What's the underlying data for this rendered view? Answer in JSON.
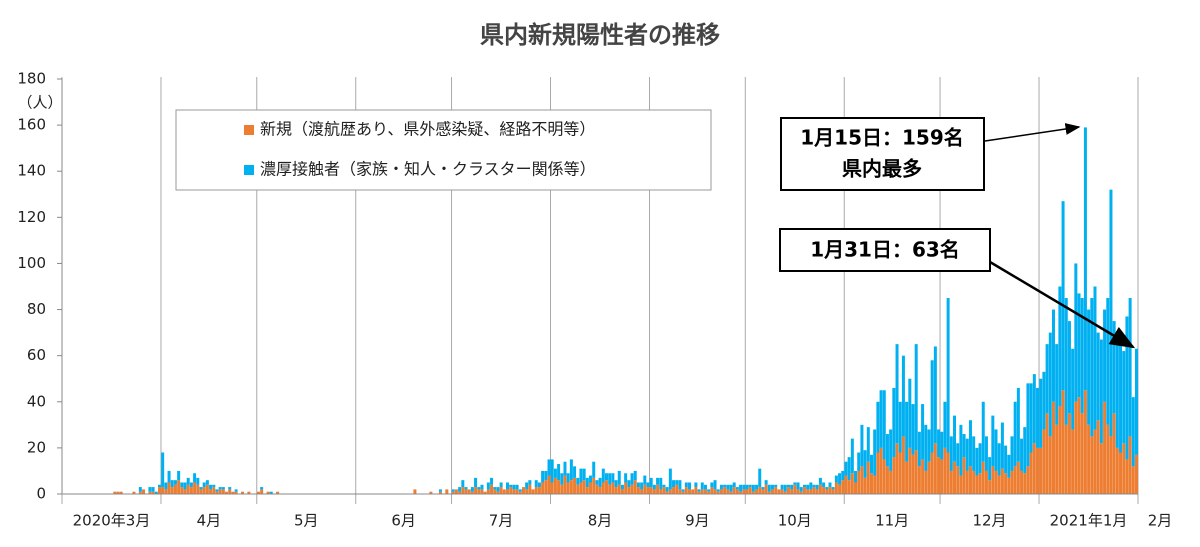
{
  "chart_data": {
    "type": "stacked_bar",
    "title": "県内新規陽性者の推移",
    "y_unit_label": "（人）",
    "categories": [
      "2020年3月",
      null,
      null,
      null,
      null,
      null,
      null,
      null,
      null,
      null,
      null,
      null,
      null,
      null,
      null,
      null,
      null,
      null,
      null,
      null,
      null,
      null,
      null,
      null,
      null,
      null,
      null,
      null,
      null,
      null,
      null,
      "4月",
      null,
      null,
      null,
      null,
      null,
      null,
      null,
      null,
      null,
      null,
      null,
      null,
      null,
      null,
      null,
      null,
      null,
      null,
      null,
      null,
      null,
      null,
      null,
      null,
      null,
      null,
      null,
      null,
      null,
      "5月",
      null,
      null,
      null,
      null,
      null,
      null,
      null,
      null,
      null,
      null,
      null,
      null,
      null,
      null,
      null,
      null,
      null,
      null,
      null,
      null,
      null,
      null,
      null,
      null,
      null,
      null,
      null,
      null,
      null,
      null,
      "6月",
      null,
      null,
      null,
      null,
      null,
      null,
      null,
      null,
      null,
      null,
      null,
      null,
      null,
      null,
      null,
      null,
      null,
      null,
      null,
      null,
      null,
      null,
      null,
      null,
      null,
      null,
      null,
      null,
      null,
      "7月",
      null,
      null,
      null,
      null,
      null,
      null,
      null,
      null,
      null,
      null,
      null,
      null,
      null,
      null,
      null,
      null,
      null,
      null,
      null,
      null,
      null,
      null,
      null,
      null,
      null,
      null,
      null,
      null,
      null,
      null,
      "8月",
      null,
      null,
      null,
      null,
      null,
      null,
      null,
      null,
      null,
      null,
      null,
      null,
      null,
      null,
      null,
      null,
      null,
      null,
      null,
      null,
      null,
      null,
      null,
      null,
      null,
      null,
      null,
      null,
      null,
      null,
      "9月",
      null,
      null,
      null,
      null,
      null,
      null,
      null,
      null,
      null,
      null,
      null,
      null,
      null,
      null,
      null,
      null,
      null,
      null,
      null,
      null,
      null,
      null,
      null,
      null,
      null,
      null,
      null,
      null,
      null,
      "10月",
      null,
      null,
      null,
      null,
      null,
      null,
      null,
      null,
      null,
      null,
      null,
      null,
      null,
      null,
      null,
      null,
      null,
      null,
      null,
      null,
      null,
      null,
      null,
      null,
      null,
      null,
      null,
      null,
      null,
      null,
      "11月",
      null,
      null,
      null,
      null,
      null,
      null,
      null,
      null,
      null,
      null,
      null,
      null,
      null,
      null,
      null,
      null,
      null,
      null,
      null,
      null,
      null,
      null,
      null,
      null,
      null,
      null,
      null,
      null,
      null,
      "12月",
      null,
      null,
      null,
      null,
      null,
      null,
      null,
      null,
      null,
      null,
      null,
      null,
      null,
      null,
      null,
      null,
      null,
      null,
      null,
      null,
      null,
      null,
      null,
      null,
      null,
      null,
      null,
      null,
      null,
      null,
      "2021年1月",
      null,
      null,
      null,
      null,
      null,
      null,
      null,
      null,
      null,
      null,
      null,
      null,
      null,
      null,
      null,
      null,
      null,
      null,
      null,
      null,
      null,
      null,
      null,
      null,
      null,
      null,
      null,
      null,
      null,
      null,
      "2月"
    ],
    "series": [
      {
        "name": "新規（渡航歴あり、県外感染疑、経路不明等）",
        "color": "#ED7D31",
        "values": [
          0,
          0,
          0,
          0,
          0,
          0,
          0,
          0,
          0,
          0,
          0,
          0,
          0,
          0,
          0,
          0,
          1,
          1,
          1,
          0,
          0,
          0,
          1,
          0,
          1,
          2,
          0,
          1,
          1,
          0,
          3,
          3,
          2,
          5,
          3,
          4,
          6,
          3,
          2,
          4,
          3,
          5,
          4,
          2,
          3,
          4,
          2,
          3,
          1,
          2,
          2,
          1,
          2,
          1,
          1,
          0,
          1,
          0,
          1,
          0,
          0,
          1,
          2,
          0,
          1,
          0,
          0,
          1,
          0,
          0,
          0,
          0,
          0,
          0,
          0,
          0,
          0,
          0,
          0,
          0,
          0,
          0,
          0,
          0,
          0,
          0,
          0,
          0,
          0,
          0,
          0,
          0,
          0,
          0,
          0,
          0,
          0,
          0,
          0,
          0,
          0,
          0,
          0,
          0,
          0,
          0,
          0,
          0,
          0,
          0,
          2,
          0,
          0,
          0,
          0,
          1,
          0,
          0,
          1,
          0,
          2,
          0,
          1,
          2,
          1,
          3,
          2,
          2,
          1,
          3,
          2,
          2,
          1,
          2,
          4,
          2,
          1,
          3,
          2,
          2,
          3,
          2,
          2,
          1,
          3,
          2,
          4,
          2,
          3,
          3,
          5,
          6,
          8,
          5,
          7,
          6,
          4,
          8,
          5,
          6,
          7,
          4,
          5,
          6,
          3,
          5,
          7,
          4,
          3,
          5,
          6,
          4,
          5,
          3,
          4,
          2,
          5,
          3,
          4,
          6,
          3,
          2,
          4,
          3,
          3,
          2,
          4,
          2,
          3,
          1,
          2,
          3,
          4,
          2,
          1,
          3,
          2,
          2,
          3,
          1,
          2,
          2,
          1,
          3,
          2,
          1,
          2,
          3,
          2,
          1,
          3,
          2,
          1,
          2,
          2,
          3,
          1,
          2,
          3,
          2,
          4,
          1,
          2,
          3,
          2,
          2,
          1,
          3,
          2,
          4,
          2,
          1,
          3,
          2,
          2,
          3,
          2,
          4,
          3,
          2,
          3,
          2,
          5,
          4,
          6,
          8,
          6,
          9,
          5,
          10,
          12,
          7,
          14,
          9,
          8,
          18,
          20,
          15,
          12,
          10,
          16,
          22,
          18,
          25,
          14,
          20,
          17,
          19,
          12,
          15,
          10,
          14,
          18,
          22,
          16,
          15,
          20,
          18,
          10,
          14,
          12,
          8,
          16,
          10,
          12,
          10,
          8,
          9,
          14,
          10,
          6,
          12,
          10,
          8,
          11,
          9,
          7,
          10,
          12,
          14,
          10,
          9,
          12,
          18,
          22,
          20,
          20,
          28,
          35,
          25,
          40,
          30,
          38,
          45,
          30,
          35,
          28,
          40,
          42,
          35,
          45,
          30,
          25,
          28,
          32,
          22,
          40,
          30,
          25,
          35,
          20,
          18,
          22,
          15,
          25,
          12,
          17,
          null
        ]
      },
      {
        "name": "濃厚接触者（家族・知人・クラスター関係等）",
        "color": "#00B0F0",
        "values": [
          0,
          0,
          0,
          0,
          0,
          0,
          0,
          0,
          0,
          0,
          0,
          0,
          0,
          0,
          0,
          0,
          0,
          0,
          0,
          0,
          0,
          0,
          0,
          0,
          2,
          0,
          0,
          2,
          2,
          1,
          1,
          15,
          3,
          5,
          3,
          2,
          4,
          2,
          3,
          3,
          2,
          4,
          3,
          1,
          2,
          2,
          2,
          1,
          1,
          1,
          1,
          0,
          1,
          0,
          1,
          0,
          0,
          0,
          0,
          0,
          0,
          0,
          1,
          0,
          0,
          1,
          0,
          0,
          0,
          0,
          0,
          0,
          0,
          0,
          0,
          0,
          0,
          0,
          0,
          0,
          0,
          0,
          0,
          0,
          0,
          0,
          0,
          0,
          0,
          0,
          0,
          0,
          0,
          0,
          0,
          0,
          0,
          0,
          0,
          0,
          0,
          0,
          0,
          0,
          0,
          0,
          0,
          0,
          0,
          0,
          0,
          0,
          0,
          0,
          0,
          0,
          0,
          0,
          1,
          0,
          0,
          0,
          1,
          0,
          2,
          3,
          1,
          0,
          2,
          4,
          1,
          2,
          0,
          3,
          3,
          1,
          2,
          2,
          0,
          3,
          1,
          2,
          2,
          1,
          0,
          3,
          2,
          0,
          3,
          2,
          5,
          4,
          7,
          10,
          4,
          7,
          5,
          6,
          4,
          9,
          5,
          3,
          6,
          5,
          4,
          3,
          7,
          2,
          4,
          6,
          3,
          5,
          4,
          3,
          6,
          2,
          4,
          3,
          5,
          4,
          2,
          3,
          4,
          2,
          4,
          2,
          3,
          5,
          1,
          2,
          9,
          3,
          2,
          4,
          1,
          2,
          3,
          0,
          2,
          1,
          3,
          2,
          1,
          2,
          4,
          1,
          2,
          1,
          2,
          3,
          2,
          1,
          3,
          2,
          2,
          1,
          3,
          2,
          8,
          1,
          2,
          3,
          2,
          1,
          0,
          2,
          3,
          1,
          2,
          1,
          3,
          2,
          1,
          2,
          3,
          1,
          2,
          3,
          2,
          1,
          2,
          1,
          3,
          5,
          4,
          6,
          10,
          15,
          5,
          8,
          18,
          12,
          15,
          8,
          20,
          22,
          25,
          30,
          14,
          18,
          30,
          43,
          22,
          35,
          26,
          30,
          22,
          46,
          15,
          24,
          20,
          14,
          40,
          42,
          12,
          12,
          20,
          67,
          15,
          20,
          10,
          22,
          10,
          14,
          20,
          15,
          12,
          13,
          26,
          15,
          10,
          22,
          18,
          14,
          20,
          12,
          10,
          15,
          28,
          32,
          14,
          20,
          36,
          30,
          30,
          26,
          30,
          25,
          30,
          45,
          40,
          35,
          52,
          82,
          55,
          40,
          35,
          60,
          45,
          50,
          114,
          50,
          60,
          62,
          38,
          45,
          40,
          55,
          107,
          40,
          50,
          52,
          40,
          62,
          60,
          30,
          46,
          null
        ]
      }
    ],
    "ylim": [
      0,
      180
    ],
    "yticks": [
      0,
      20,
      40,
      60,
      80,
      100,
      120,
      140,
      160,
      180
    ],
    "annotations": [
      {
        "lines": [
          "1月15日：159名",
          "県内最多"
        ]
      },
      {
        "lines": [
          "1月31日：63名"
        ]
      }
    ]
  }
}
